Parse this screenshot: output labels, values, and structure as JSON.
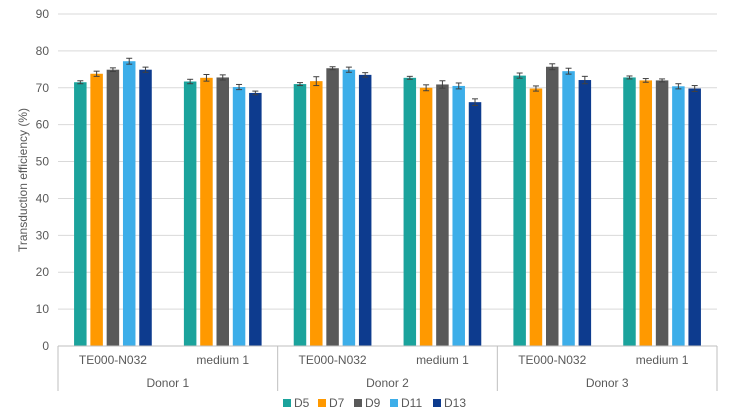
{
  "chart_data": {
    "type": "bar",
    "ylabel": "Transduction efficiency (%)",
    "ylim": [
      0,
      90
    ],
    "yticks": [
      0,
      10,
      20,
      30,
      40,
      50,
      60,
      70,
      80,
      90
    ],
    "grid": true,
    "legend_position": "bottom",
    "categories": [
      {
        "label": "TE000-N032",
        "group": "Donor 1"
      },
      {
        "label": "medium 1",
        "group": "Donor 1"
      },
      {
        "label": "TE000-N032",
        "group": "Donor 2"
      },
      {
        "label": "medium 1",
        "group": "Donor 2"
      },
      {
        "label": "TE000-N032",
        "group": "Donor 3"
      },
      {
        "label": "medium 1",
        "group": "Donor 3"
      }
    ],
    "groups": [
      "Donor 1",
      "Donor 2",
      "Donor 3"
    ],
    "series": [
      {
        "name": "D5",
        "color": "#1BA39C",
        "values": [
          71.5,
          71.7,
          71.0,
          72.7,
          73.3,
          72.8
        ],
        "errors": [
          0.4,
          0.6,
          0.4,
          0.4,
          0.7,
          0.4
        ]
      },
      {
        "name": "D7",
        "color": "#FF9900",
        "values": [
          73.8,
          72.7,
          71.8,
          70.0,
          69.8,
          72.0
        ],
        "errors": [
          0.7,
          0.9,
          1.2,
          0.8,
          0.7,
          0.5
        ]
      },
      {
        "name": "D9",
        "color": "#595959",
        "values": [
          74.9,
          72.8,
          75.3,
          70.9,
          75.7,
          72.0
        ],
        "errors": [
          0.5,
          0.7,
          0.4,
          1.0,
          0.8,
          0.4
        ]
      },
      {
        "name": "D11",
        "color": "#3DAEE9",
        "values": [
          77.2,
          70.2,
          74.9,
          70.5,
          74.5,
          70.4
        ],
        "errors": [
          0.8,
          0.7,
          0.7,
          0.8,
          0.8,
          0.7
        ]
      },
      {
        "name": "D13",
        "color": "#0D3B8E",
        "values": [
          74.9,
          68.6,
          73.5,
          66.1,
          72.1,
          69.8
        ],
        "errors": [
          0.7,
          0.5,
          0.6,
          0.9,
          1.0,
          0.8
        ]
      }
    ]
  }
}
